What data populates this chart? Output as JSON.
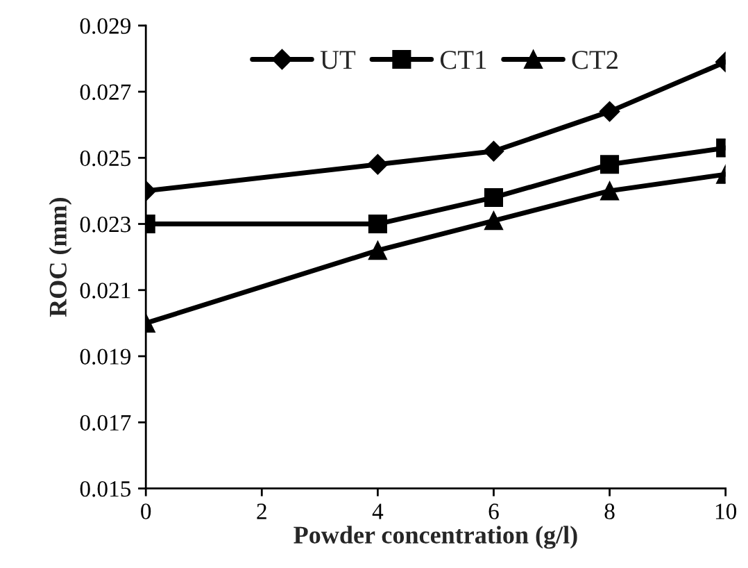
{
  "chart_data": {
    "type": "line",
    "xlabel": "Powder concentration (g/l)",
    "ylabel": "ROC (mm)",
    "x": [
      0,
      4,
      6,
      8,
      10
    ],
    "series": [
      {
        "name": "UT",
        "color": "#000000",
        "marker": "diamond",
        "values": [
          0.024,
          0.0248,
          0.0252,
          0.0264,
          0.0279
        ]
      },
      {
        "name": "CT1",
        "color": "#000000",
        "marker": "square",
        "values": [
          0.023,
          0.023,
          0.0238,
          0.0248,
          0.0253
        ]
      },
      {
        "name": "CT2",
        "color": "#000000",
        "marker": "triangle",
        "values": [
          0.02,
          0.0222,
          0.0231,
          0.024,
          0.0245
        ]
      }
    ],
    "xlim": [
      0,
      10
    ],
    "xticks": [
      0,
      2,
      4,
      6,
      8,
      10
    ],
    "ylim": [
      0.015,
      0.029
    ],
    "yticks": [
      {
        "value": 0.015,
        "label": "0.015"
      },
      {
        "value": 0.017,
        "label": "0.017"
      },
      {
        "value": 0.019,
        "label": "0.019"
      },
      {
        "value": 0.021,
        "label": "0.021"
      },
      {
        "value": 0.023,
        "label": "0.023"
      },
      {
        "value": 0.025,
        "label": "0.025"
      },
      {
        "value": 0.027,
        "label": "0.027"
      },
      {
        "value": 0.029,
        "label": "0.029"
      }
    ],
    "grid": false,
    "legend": "top",
    "line_style": "solid"
  }
}
